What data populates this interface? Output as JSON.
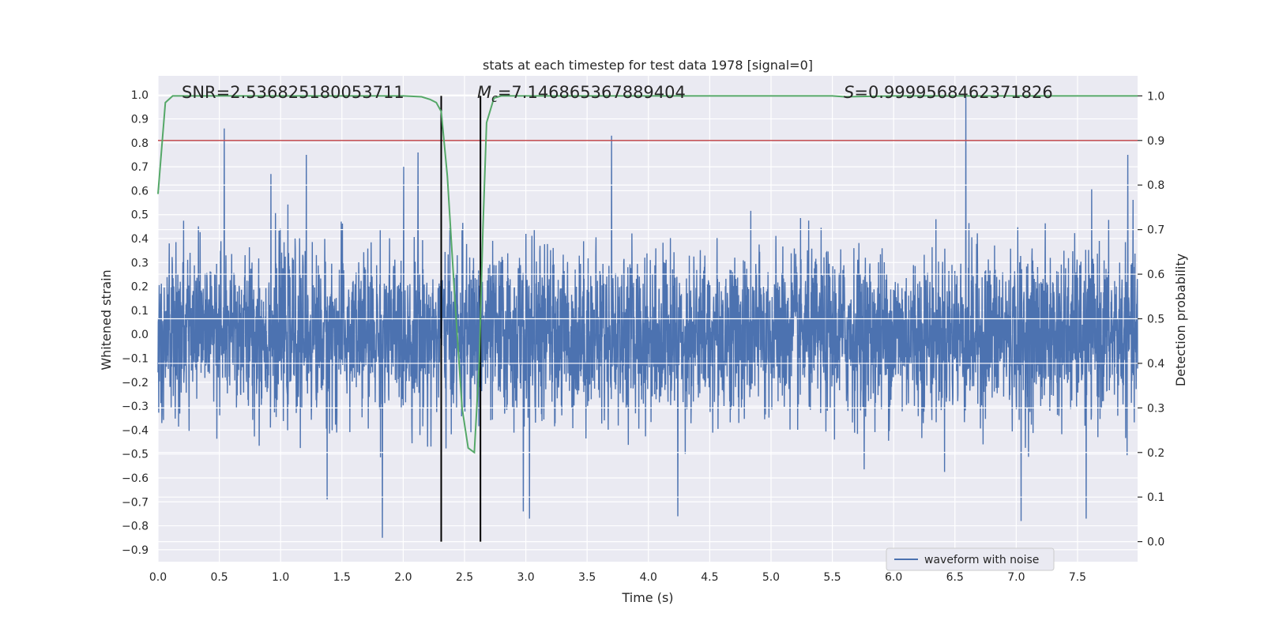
{
  "chart_data": {
    "type": "line",
    "title": "stats at each timestep for test data 1978 [signal=0]",
    "xlabel": "Time (s)",
    "ylabel_left": "Whitened strain",
    "ylabel_right": "Detection probability",
    "xlim": [
      0.0,
      7.99
    ],
    "ylim_left": [
      -0.95,
      1.08
    ],
    "ylim_right": [
      -0.045,
      1.045
    ],
    "x_ticks": [
      "0.0",
      "0.5",
      "1.0",
      "1.5",
      "2.0",
      "2.5",
      "3.0",
      "3.5",
      "4.0",
      "4.5",
      "5.0",
      "5.5",
      "6.0",
      "6.5",
      "7.0",
      "7.5"
    ],
    "y_left_ticks": [
      "1.0",
      "0.9",
      "0.8",
      "0.7",
      "0.6",
      "0.5",
      "0.4",
      "0.3",
      "0.2",
      "0.1",
      "0.0",
      "-0.1",
      "-0.2",
      "-0.3",
      "-0.4",
      "-0.5",
      "-0.6",
      "-0.7",
      "-0.8",
      "-0.9"
    ],
    "y_right_ticks": [
      "1.0",
      "0.9",
      "0.8",
      "0.7",
      "0.6",
      "0.5",
      "0.4",
      "0.3",
      "0.2",
      "0.1",
      "0.0"
    ],
    "grid": true,
    "legend": {
      "position": "lower right",
      "entries": [
        "waveform with noise"
      ]
    },
    "annotations": {
      "snr": "SNR=2.536825180053711",
      "mc_symbol": "M",
      "mc_sub": "c",
      "mc_value": "=7.146865367889404",
      "s_symbol": "S",
      "s_value": "=0.9999568462371826"
    },
    "threshold": {
      "axis": "right",
      "value": 0.9
    },
    "vertical_markers": [
      2.31,
      2.63
    ],
    "series": [
      {
        "name": "waveform with noise",
        "axis": "left",
        "kind": "noise",
        "samples": 4096,
        "envelope_std": 0.17,
        "range": [
          -0.86,
          1.0
        ],
        "peaks": [
          {
            "x": 0.54,
            "y": 0.86
          },
          {
            "x": 0.92,
            "y": 0.67
          },
          {
            "x": 1.21,
            "y": 0.75
          },
          {
            "x": 1.38,
            "y": -0.69
          },
          {
            "x": 1.83,
            "y": -0.85
          },
          {
            "x": 2.12,
            "y": 0.76
          },
          {
            "x": 2.98,
            "y": -0.74
          },
          {
            "x": 3.03,
            "y": -0.77
          },
          {
            "x": 3.7,
            "y": 0.83
          },
          {
            "x": 4.24,
            "y": -0.76
          },
          {
            "x": 6.59,
            "y": 1.0
          },
          {
            "x": 7.04,
            "y": -0.78
          },
          {
            "x": 7.57,
            "y": -0.77
          },
          {
            "x": 7.91,
            "y": 0.75
          }
        ]
      },
      {
        "name": "detection probability",
        "axis": "right",
        "x": [
          0.0,
          0.06,
          0.12,
          0.2,
          0.5,
          1.0,
          1.5,
          2.0,
          2.15,
          2.22,
          2.27,
          2.31,
          2.36,
          2.42,
          2.48,
          2.53,
          2.58,
          2.62,
          2.65,
          2.68,
          2.74,
          2.8,
          3.0,
          4.0,
          5.0,
          5.5,
          5.6,
          6.0,
          7.0,
          7.99
        ],
        "y": [
          0.78,
          0.985,
          1.0,
          1.0,
          1.0,
          1.0,
          1.0,
          1.0,
          0.998,
          0.992,
          0.985,
          0.965,
          0.82,
          0.55,
          0.3,
          0.21,
          0.2,
          0.4,
          0.7,
          0.94,
          0.995,
          1.0,
          1.0,
          1.0,
          1.0,
          1.0,
          0.998,
          1.0,
          1.0,
          1.0
        ]
      }
    ],
    "colors": {
      "waveform": "#4c72b0",
      "probability": "#55a868",
      "threshold": "#c44e52",
      "markers": "#000000",
      "background": "#eaeaf2",
      "grid": "#ffffff"
    }
  }
}
